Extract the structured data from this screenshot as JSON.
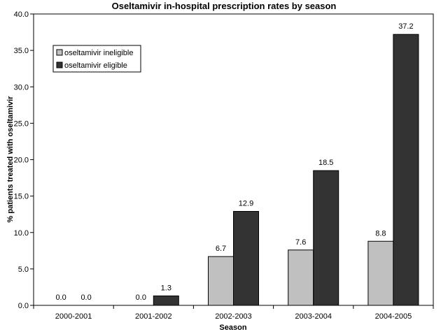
{
  "chart_data": {
    "type": "bar",
    "title": "Oseltamivir in-hospital prescription rates by season",
    "xlabel": "Season",
    "ylabel": "% patients treated with oseltamivir",
    "categories": [
      "2000-2001",
      "2001-2002",
      "2002-2003",
      "2003-2004",
      "2004-2005"
    ],
    "series": [
      {
        "name": "oseltamivir ineligible",
        "color": "#c0c0c0",
        "values": [
          0.0,
          0.0,
          6.7,
          7.6,
          8.8
        ],
        "labels": [
          "0.0",
          "0.0",
          "6.7",
          "7.6",
          "8.8"
        ]
      },
      {
        "name": "oseltamivir eligible",
        "color": "#333333",
        "values": [
          0.0,
          1.3,
          12.9,
          18.5,
          37.2
        ],
        "labels": [
          "0.0",
          "1.3",
          "12.9",
          "18.5",
          "37.2"
        ]
      }
    ],
    "ylim": [
      0,
      40
    ],
    "yticks": [
      "0.0",
      "5.0",
      "10.0",
      "15.0",
      "20.0",
      "25.0",
      "30.0",
      "35.0",
      "40.0"
    ],
    "grid": false,
    "legend_position": "top-left"
  }
}
